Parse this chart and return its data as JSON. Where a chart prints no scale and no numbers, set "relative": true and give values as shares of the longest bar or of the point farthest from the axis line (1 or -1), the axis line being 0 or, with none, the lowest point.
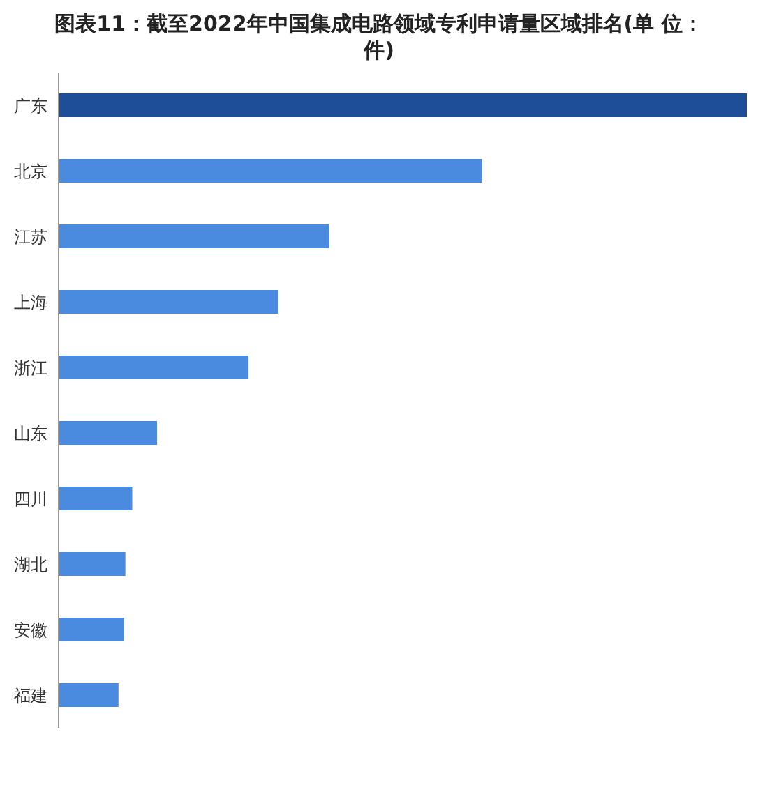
{
  "chart_data": {
    "type": "bar",
    "orientation": "horizontal",
    "relative": true,
    "title": "图表11：截至2022年中国集成电路领域专利申请量区域排名(单 位：件)",
    "categories": [
      "广东",
      "北京",
      "江苏",
      "上海",
      "浙江",
      "山东",
      "四川",
      "湖北",
      "安徽",
      "福建"
    ],
    "values": [
      1,
      0.615,
      0.393,
      0.319,
      0.276,
      0.143,
      0.107,
      0.097,
      0.095,
      0.087
    ],
    "colors": [
      "#1f4e98",
      "#4a8be0",
      "#4a8be0",
      "#4a8be0",
      "#4a8be0",
      "#4a8be0",
      "#4a8be0",
      "#4a8be0",
      "#4a8be0",
      "#4a8be0"
    ],
    "grid": false,
    "legend": false
  }
}
